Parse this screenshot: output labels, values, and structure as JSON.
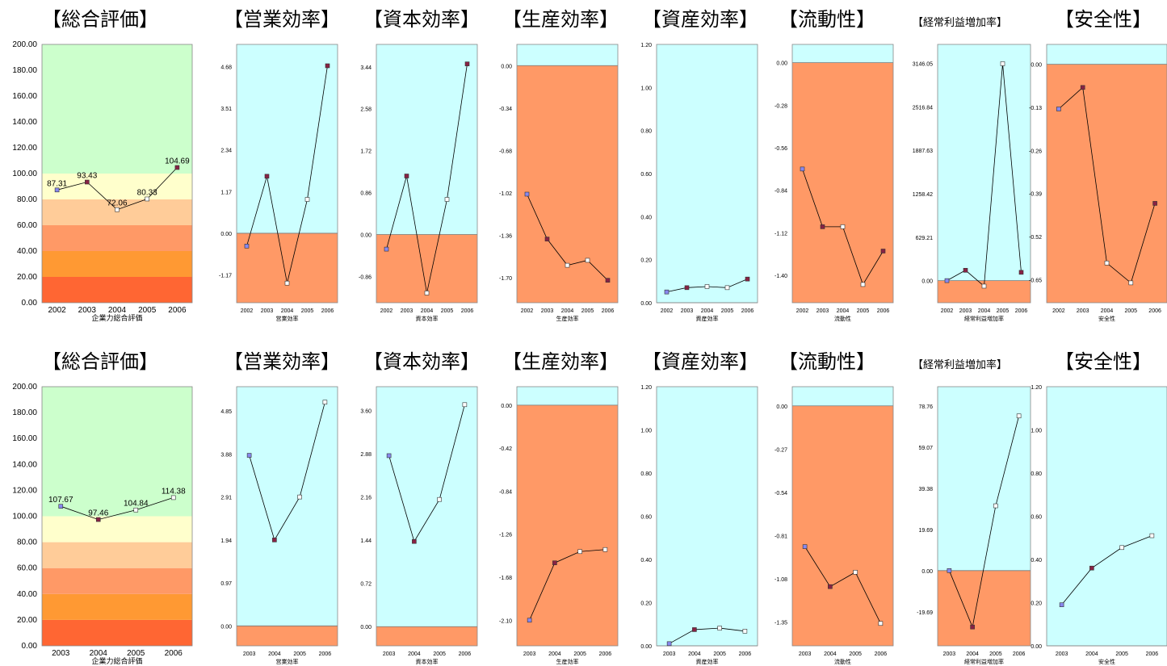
{
  "colors": {
    "cyan": "#ccffff",
    "orange_bg": "#ff9966",
    "line": "#000000",
    "bands": [
      "#ff6633",
      "#ff9933",
      "#ff9966",
      "#ffcc99",
      "#ffffcc",
      "#ccffcc"
    ]
  },
  "chart_data": [
    {
      "type": "line",
      "title": "【総合評価】",
      "xlabel": "企業力総合評価",
      "categories": [
        "2002",
        "2003",
        "2004",
        "2005",
        "2006"
      ],
      "values": [
        87.31,
        93.43,
        72.06,
        80.33,
        104.69
      ],
      "data_labels": [
        "87.31",
        "93.43",
        "72.06",
        "80.33",
        "104.69"
      ],
      "yticks": [
        "200.00",
        "180.00",
        "160.00",
        "140.00",
        "120.00",
        "100.00",
        "80.00",
        "60.00",
        "40.00",
        "20.00",
        "0.00"
      ],
      "ylim": [
        0,
        200
      ],
      "background": "bands",
      "marker_colors": [
        "#8888ee",
        "#882244",
        "#ffffff",
        "#ffffff",
        "#882244"
      ]
    },
    {
      "type": "line",
      "title": "【営業効率】",
      "xlabel": "営業効率",
      "categories": [
        "2002",
        "2003",
        "2004",
        "2005",
        "2006"
      ],
      "values": [
        -0.36,
        1.6,
        -1.4,
        0.95,
        4.7
      ],
      "yticks": [
        "4.68",
        "3.51",
        "2.34",
        "1.17",
        "0.00",
        "-1.17"
      ],
      "ylim": [
        -1.95,
        5.3
      ],
      "background": "split",
      "marker_colors": [
        "#8888ee",
        "#882244",
        "#ffffff",
        "#ffffff",
        "#882244"
      ]
    },
    {
      "type": "line",
      "title": "【資本効率】",
      "xlabel": "資本効率",
      "categories": [
        "2002",
        "2003",
        "2004",
        "2005",
        "2006"
      ],
      "values": [
        -0.3,
        1.2,
        -1.2,
        0.72,
        3.5
      ],
      "yticks": [
        "3.44",
        "2.58",
        "1.72",
        "0.86",
        "0.00",
        "-0.86"
      ],
      "ylim": [
        -1.4,
        3.9
      ],
      "background": "split",
      "marker_colors": [
        "#8888ee",
        "#882244",
        "#ffffff",
        "#ffffff",
        "#882244"
      ]
    },
    {
      "type": "line",
      "title": "【生産効率】",
      "xlabel": "生産効率",
      "categories": [
        "2002",
        "2003",
        "2004",
        "2005",
        "2006"
      ],
      "values": [
        -1.03,
        -1.39,
        -1.6,
        -1.56,
        -1.72
      ],
      "yticks": [
        "0.00",
        "-0.34",
        "-0.68",
        "-1.02",
        "-1.36",
        "-1.70"
      ],
      "ylim": [
        -1.9,
        0.17
      ],
      "background": "split",
      "marker_colors": [
        "#8888ee",
        "#882244",
        "#ffffff",
        "#ffffff",
        "#882244"
      ]
    },
    {
      "type": "line",
      "title": "【資産効率】",
      "xlabel": "資産効率",
      "categories": [
        "2002",
        "2003",
        "2004",
        "2005",
        "2006"
      ],
      "values": [
        0.05,
        0.07,
        0.075,
        0.07,
        0.11
      ],
      "yticks": [
        "1.20",
        "1.00",
        "0.80",
        "0.60",
        "0.40",
        "0.20",
        "0.00"
      ],
      "ylim": [
        0,
        1.2
      ],
      "background": "split",
      "marker_colors": [
        "#8888ee",
        "#882244",
        "#ffffff",
        "#ffffff",
        "#882244"
      ]
    },
    {
      "type": "line",
      "title": "【流動性】",
      "xlabel": "流動性",
      "categories": [
        "2002",
        "2003",
        "2004",
        "2005",
        "2006"
      ],
      "values": [
        -0.7,
        -1.08,
        -1.08,
        -1.46,
        -1.24
      ],
      "yticks": [
        "0.00",
        "-0.28",
        "-0.56",
        "-0.84",
        "-1.12",
        "-1.40"
      ],
      "ylim": [
        -1.58,
        0.12
      ],
      "background": "split",
      "marker_colors": [
        "#8888ee",
        "#882244",
        "#ffffff",
        "#ffffff",
        "#882244"
      ]
    },
    {
      "type": "line",
      "title": "【経常利益増加率】",
      "xlabel": "経常利益増加率",
      "categories": [
        "2002",
        "2003",
        "2004",
        "2005",
        "2006"
      ],
      "values": [
        0,
        150,
        -80,
        3140,
        120
      ],
      "yticks": [
        "3146.05",
        "2516.84",
        "1887.63",
        "1258.42",
        "629.21",
        "0.00"
      ],
      "ylim": [
        -320,
        3420
      ],
      "background": "split",
      "marker_colors": [
        "#8888ee",
        "#882244",
        "#ffffff",
        "#ffffff",
        "#882244"
      ]
    },
    {
      "type": "line",
      "title": "【安全性】",
      "xlabel": "安全性",
      "categories": [
        "2002",
        "2003",
        "2004",
        "2005",
        "2006"
      ],
      "values": [
        -0.135,
        -0.07,
        -0.6,
        -0.66,
        -0.42
      ],
      "yticks": [
        "0.00",
        "-0.13",
        "-0.26",
        "-0.39",
        "-0.52",
        "-0.65"
      ],
      "ylim": [
        -0.72,
        0.06
      ],
      "background": "split",
      "marker_colors": [
        "#8888ee",
        "#882244",
        "#ffffff",
        "#ffffff",
        "#882244"
      ]
    },
    {
      "type": "line",
      "title": "【総合評価】",
      "xlabel": "企業力総合評価",
      "categories": [
        "2003",
        "2004",
        "2005",
        "2006"
      ],
      "values": [
        107.67,
        97.46,
        104.84,
        114.38
      ],
      "data_labels": [
        "107.67",
        "97.46",
        "104.84",
        "114.38"
      ],
      "yticks": [
        "200.00",
        "180.00",
        "160.00",
        "140.00",
        "120.00",
        "100.00",
        "80.00",
        "60.00",
        "40.00",
        "20.00",
        "0.00"
      ],
      "ylim": [
        0,
        200
      ],
      "background": "bands",
      "marker_colors": [
        "#8888ee",
        "#882244",
        "#ffffff",
        "#ffffff"
      ]
    },
    {
      "type": "line",
      "title": "【営業効率】",
      "xlabel": "営業効率",
      "categories": [
        "2003",
        "2004",
        "2005",
        "2006"
      ],
      "values": [
        3.85,
        1.94,
        2.91,
        5.05
      ],
      "yticks": [
        "4.85",
        "3.88",
        "2.91",
        "1.94",
        "0.97",
        "0.00"
      ],
      "ylim": [
        -0.45,
        5.4
      ],
      "background": "split",
      "marker_colors": [
        "#8888ee",
        "#882244",
        "#ffffff",
        "#ffffff"
      ]
    },
    {
      "type": "line",
      "title": "【資本効率】",
      "xlabel": "資本効率",
      "categories": [
        "2003",
        "2004",
        "2005",
        "2006"
      ],
      "values": [
        2.85,
        1.42,
        2.12,
        3.7
      ],
      "yticks": [
        "3.60",
        "2.88",
        "2.16",
        "1.44",
        "0.72",
        "0.00"
      ],
      "ylim": [
        -0.32,
        4.0
      ],
      "background": "split",
      "marker_colors": [
        "#8888ee",
        "#882244",
        "#ffffff",
        "#ffffff"
      ]
    },
    {
      "type": "line",
      "title": "【生産効率】",
      "xlabel": "生産効率",
      "categories": [
        "2003",
        "2004",
        "2005",
        "2006"
      ],
      "values": [
        -2.1,
        -1.54,
        -1.43,
        -1.41
      ],
      "yticks": [
        "0.00",
        "-0.42",
        "-0.84",
        "-1.26",
        "-1.68",
        "-2.10"
      ],
      "ylim": [
        -2.35,
        0.18
      ],
      "background": "split",
      "marker_colors": [
        "#8888ee",
        "#882244",
        "#ffffff",
        "#ffffff"
      ]
    },
    {
      "type": "line",
      "title": "【資産効率】",
      "xlabel": "資産効率",
      "categories": [
        "2003",
        "2004",
        "2005",
        "2006"
      ],
      "values": [
        0.01,
        0.075,
        0.082,
        0.068
      ],
      "yticks": [
        "1.20",
        "1.00",
        "0.80",
        "0.60",
        "0.40",
        "0.20",
        "0.00"
      ],
      "ylim": [
        0,
        1.2
      ],
      "background": "split",
      "marker_colors": [
        "#8888ee",
        "#882244",
        "#ffffff",
        "#ffffff"
      ]
    },
    {
      "type": "line",
      "title": "【流動性】",
      "xlabel": "流動性",
      "categories": [
        "2003",
        "2004",
        "2005",
        "2006"
      ],
      "values": [
        -0.88,
        -1.13,
        -1.04,
        -1.36
      ],
      "yticks": [
        "0.00",
        "-0.27",
        "-0.54",
        "-0.81",
        "-1.08",
        "-1.35"
      ],
      "ylim": [
        -1.5,
        0.12
      ],
      "background": "split",
      "marker_colors": [
        "#8888ee",
        "#882244",
        "#ffffff",
        "#ffffff"
      ]
    },
    {
      "type": "line",
      "title": "【経常利益増加率】",
      "xlabel": "経常利益増加率",
      "categories": [
        "2003",
        "2004",
        "2005",
        "2006"
      ],
      "values": [
        0,
        -27,
        31,
        74
      ],
      "yticks": [
        "78.76",
        "59.07",
        "39.38",
        "19.69",
        "0.00",
        "-19.69"
      ],
      "ylim": [
        -36,
        88
      ],
      "background": "split",
      "marker_colors": [
        "#8888ee",
        "#882244",
        "#ffffff",
        "#ffffff"
      ]
    },
    {
      "type": "line",
      "title": "【安全性】",
      "xlabel": "安全性",
      "categories": [
        "2003",
        "2004",
        "2005",
        "2006"
      ],
      "values": [
        0.19,
        0.36,
        0.455,
        0.51
      ],
      "yticks": [
        "1.20",
        "1.00",
        "0.80",
        "0.60",
        "0.40",
        "0.20",
        "0.00"
      ],
      "ylim": [
        0,
        1.2
      ],
      "background": "split",
      "marker_colors": [
        "#8888ee",
        "#882244",
        "#ffffff",
        "#ffffff"
      ]
    }
  ]
}
